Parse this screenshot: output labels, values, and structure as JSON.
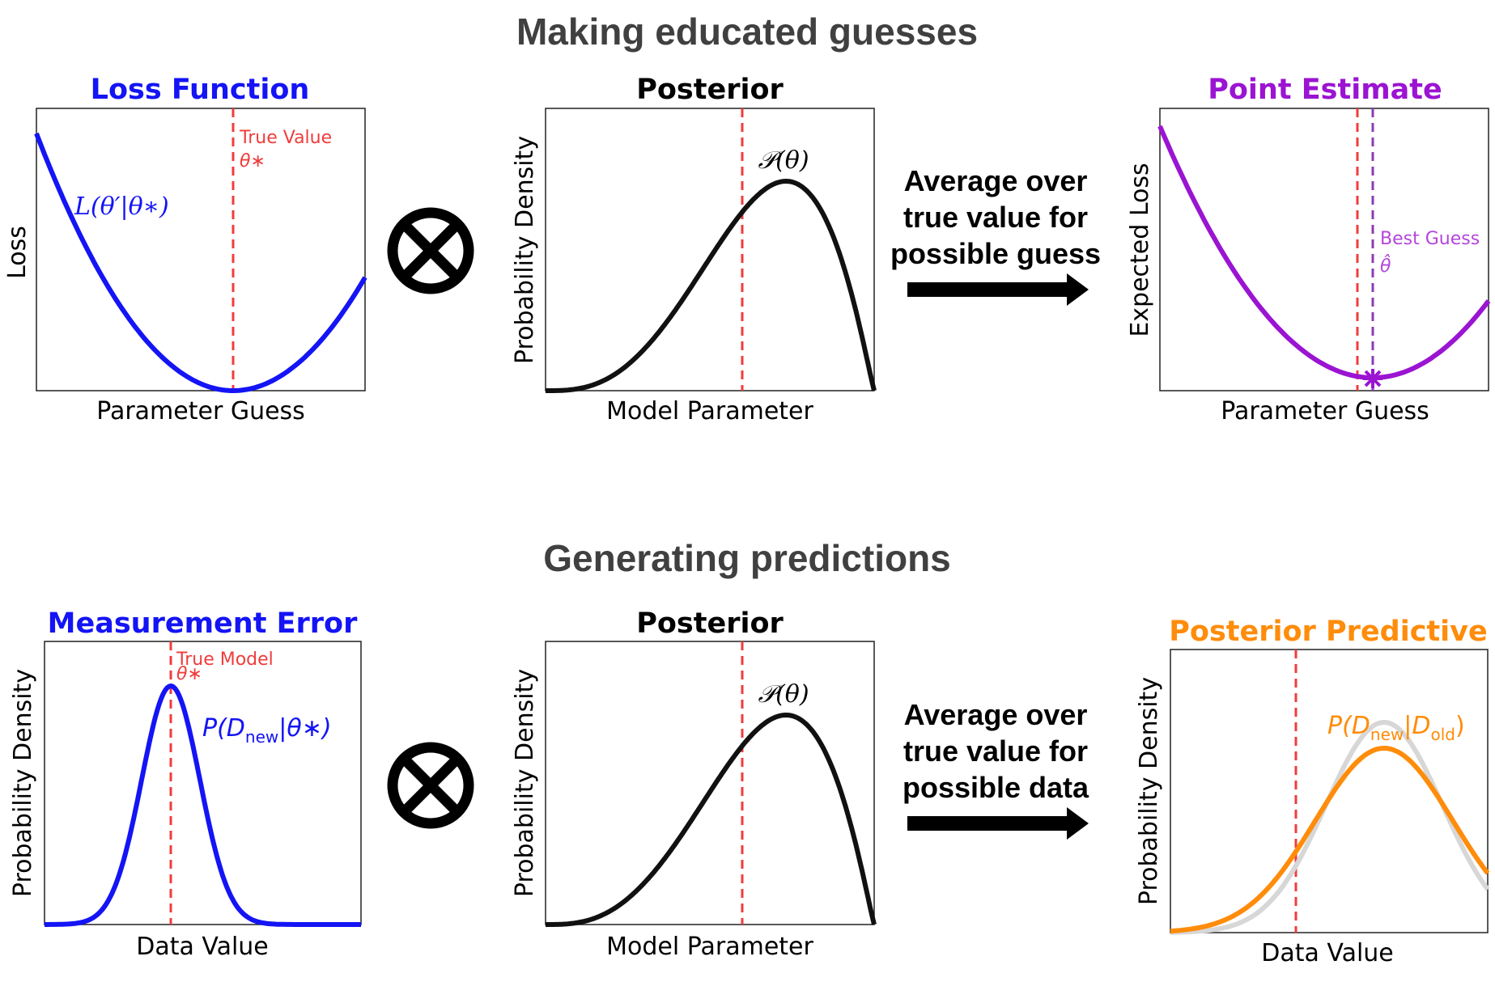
{
  "colors": {
    "blue": "#1414f5",
    "red": "#f03c3c",
    "purple": "#9b14d2",
    "purple_dashed": "#8c3cb4",
    "orange": "#ff8c0a",
    "gray": "#d7d7d7",
    "black": "#000000",
    "section_title": "#404040"
  },
  "sections": [
    {
      "title": "Making educated guesses",
      "operator_icon": "circled-times-icon",
      "arrow_icon": "right-arrow-icon",
      "arrow_text": [
        "Average over",
        "true value for",
        "possible guess"
      ],
      "panels": [
        {
          "title": "Loss Function",
          "xlabel": "Parameter Guess",
          "ylabel": "Loss",
          "curve_label": "L(θ′|θ∗)",
          "vline_label": [
            "True Value",
            "θ∗"
          ]
        },
        {
          "title": "Posterior",
          "xlabel": "Model Parameter",
          "ylabel": "Probability Density",
          "curve_label": "𝒫(θ)"
        },
        {
          "title": "Point Estimate",
          "xlabel": "Parameter Guess",
          "ylabel": "Expected Loss",
          "vline_label": [
            "Best Guess",
            "θ̂"
          ]
        }
      ]
    },
    {
      "title": "Generating predictions",
      "operator_icon": "circled-times-icon",
      "arrow_icon": "right-arrow-icon",
      "arrow_text": [
        "Average over",
        "true value for",
        "possible data"
      ],
      "panels": [
        {
          "title": "Measurement Error",
          "xlabel": "Data Value",
          "ylabel": "Probability Density",
          "curve_label": [
            "P(D",
            "new",
            "|θ∗)"
          ],
          "vline_label": [
            "True Model",
            "θ∗"
          ]
        },
        {
          "title": "Posterior",
          "xlabel": "Model Parameter",
          "ylabel": "Probability Density",
          "curve_label": "𝒫(θ)"
        },
        {
          "title": "Posterior Predictive",
          "xlabel": "Data Value",
          "ylabel": "Probability Density",
          "curve_label": [
            "P(D",
            "new",
            "|D",
            "old",
            ")"
          ]
        }
      ]
    }
  ]
}
